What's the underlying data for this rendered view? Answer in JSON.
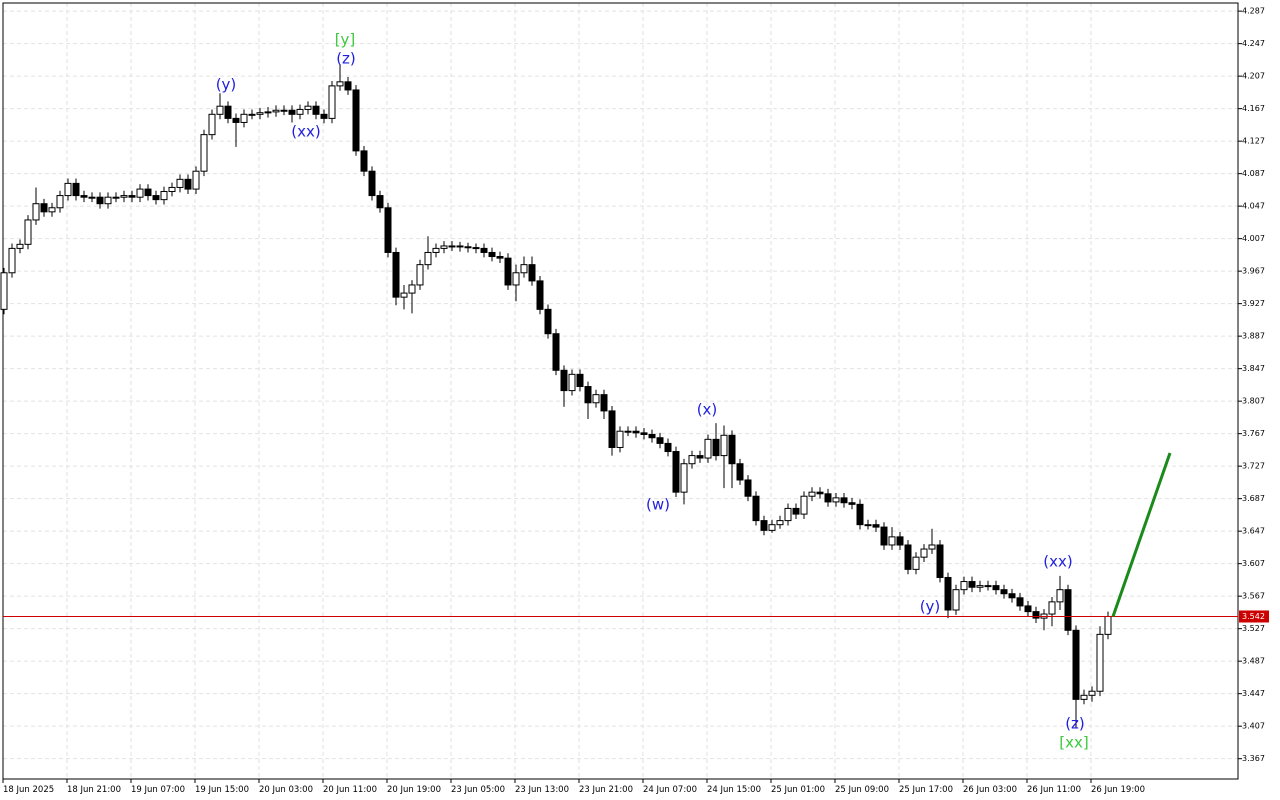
{
  "chart_data": {
    "type": "candlestick",
    "open": [
      3.92,
      3.965,
      3.995,
      4.0,
      4.03,
      4.05,
      4.04,
      4.045,
      4.06,
      4.075,
      4.06,
      4.058,
      4.058,
      4.05,
      4.058,
      4.058,
      4.06,
      4.058,
      4.068,
      4.06,
      4.055,
      4.065,
      4.07,
      4.08,
      4.068,
      4.09,
      4.135,
      4.16,
      4.17,
      4.155,
      4.15,
      4.16,
      4.16,
      4.162,
      4.163,
      4.165,
      4.165,
      4.16,
      4.166,
      4.17,
      4.16,
      4.155,
      4.195,
      4.2,
      4.19,
      4.115,
      4.09,
      4.06,
      4.045,
      3.99,
      3.935,
      3.94,
      3.95,
      3.975,
      3.99,
      3.995,
      3.998,
      3.998,
      3.997,
      3.996,
      3.995,
      3.99,
      3.985,
      3.983,
      3.95,
      3.965,
      3.975,
      3.955,
      3.92,
      3.89,
      3.845,
      3.82,
      3.84,
      3.825,
      3.805,
      3.815,
      3.795,
      3.75,
      3.77,
      3.77,
      3.768,
      3.766,
      3.762,
      3.755,
      3.745,
      3.695,
      3.73,
      3.74,
      3.737,
      3.76,
      3.74,
      3.765,
      3.73,
      3.71,
      3.69,
      3.66,
      3.648,
      3.655,
      3.66,
      3.675,
      3.668,
      3.69,
      3.695,
      3.693,
      3.683,
      3.688,
      3.682,
      3.68,
      3.655,
      3.655,
      3.652,
      3.63,
      3.64,
      3.63,
      3.6,
      3.615,
      3.625,
      3.63,
      3.59,
      3.55,
      3.575,
      3.585,
      3.578,
      3.58,
      3.58,
      3.575,
      3.57,
      3.565,
      3.555,
      3.548,
      3.54,
      3.545,
      3.56,
      3.575,
      3.525,
      3.44,
      3.445,
      3.45,
      3.52
    ],
    "high": [
      3.971,
      4.001,
      4.006,
      4.036,
      4.07,
      4.056,
      4.051,
      4.066,
      4.081,
      4.081,
      4.066,
      4.064,
      4.064,
      4.064,
      4.064,
      4.066,
      4.066,
      4.074,
      4.074,
      4.066,
      4.071,
      4.076,
      4.086,
      4.086,
      4.096,
      4.141,
      4.166,
      4.186,
      4.176,
      4.161,
      4.166,
      4.166,
      4.168,
      4.169,
      4.171,
      4.171,
      4.171,
      4.172,
      4.176,
      4.176,
      4.166,
      4.201,
      4.222,
      4.206,
      4.196,
      4.121,
      4.096,
      4.066,
      4.051,
      3.996,
      3.95,
      3.956,
      3.981,
      4.01,
      4.001,
      4.004,
      4.004,
      4.003,
      4.002,
      4.001,
      4.001,
      3.996,
      3.991,
      3.989,
      3.975,
      3.985,
      3.985,
      3.961,
      3.926,
      3.896,
      3.851,
      3.846,
      3.846,
      3.831,
      3.821,
      3.821,
      3.801,
      3.776,
      3.776,
      3.776,
      3.774,
      3.772,
      3.768,
      3.761,
      3.751,
      3.736,
      3.746,
      3.746,
      3.766,
      3.78,
      3.777,
      3.771,
      3.736,
      3.716,
      3.696,
      3.666,
      3.661,
      3.666,
      3.681,
      3.681,
      3.696,
      3.701,
      3.701,
      3.699,
      3.694,
      3.694,
      3.688,
      3.686,
      3.661,
      3.661,
      3.658,
      3.652,
      3.646,
      3.636,
      3.621,
      3.631,
      3.65,
      3.636,
      3.596,
      3.581,
      3.591,
      3.591,
      3.586,
      3.586,
      3.586,
      3.581,
      3.576,
      3.571,
      3.561,
      3.554,
      3.551,
      3.566,
      3.592,
      3.581,
      3.531,
      3.452,
      3.456,
      3.53,
      3.548
    ],
    "low": [
      3.914,
      3.959,
      3.989,
      3.994,
      4.024,
      4.034,
      4.034,
      4.039,
      4.054,
      4.054,
      4.052,
      4.052,
      4.044,
      4.044,
      4.052,
      4.052,
      4.052,
      4.052,
      4.054,
      4.049,
      4.049,
      4.059,
      4.064,
      4.062,
      4.062,
      4.084,
      4.129,
      4.154,
      4.149,
      4.12,
      4.144,
      4.154,
      4.154,
      4.156,
      4.157,
      4.159,
      4.15,
      4.154,
      4.16,
      4.154,
      4.149,
      4.149,
      4.189,
      4.184,
      4.109,
      4.084,
      4.054,
      4.039,
      3.984,
      3.925,
      3.92,
      3.915,
      3.944,
      3.969,
      3.984,
      3.989,
      3.992,
      3.991,
      3.99,
      3.989,
      3.984,
      3.979,
      3.977,
      3.944,
      3.93,
      3.959,
      3.949,
      3.914,
      3.884,
      3.839,
      3.8,
      3.814,
      3.819,
      3.785,
      3.799,
      3.785,
      3.74,
      3.744,
      3.764,
      3.762,
      3.76,
      3.756,
      3.749,
      3.739,
      3.689,
      3.68,
      3.724,
      3.731,
      3.731,
      3.734,
      3.7,
      3.7,
      3.704,
      3.684,
      3.654,
      3.642,
      3.645,
      3.65,
      3.654,
      3.662,
      3.662,
      3.684,
      3.687,
      3.677,
      3.677,
      3.676,
      3.674,
      3.649,
      3.649,
      3.646,
      3.624,
      3.624,
      3.624,
      3.594,
      3.594,
      3.609,
      3.619,
      3.584,
      3.54,
      3.544,
      3.569,
      3.572,
      3.572,
      3.574,
      3.569,
      3.564,
      3.559,
      3.549,
      3.542,
      3.534,
      3.525,
      3.53,
      3.55,
      3.519,
      3.405,
      3.434,
      3.437,
      3.444,
      3.514
    ],
    "close": [
      3.965,
      3.995,
      4.0,
      4.03,
      4.05,
      4.04,
      4.045,
      4.06,
      4.075,
      4.06,
      4.058,
      4.058,
      4.05,
      4.058,
      4.058,
      4.06,
      4.058,
      4.068,
      4.06,
      4.055,
      4.065,
      4.07,
      4.08,
      4.068,
      4.09,
      4.135,
      4.16,
      4.17,
      4.155,
      4.15,
      4.16,
      4.16,
      4.162,
      4.163,
      4.165,
      4.165,
      4.16,
      4.166,
      4.17,
      4.16,
      4.155,
      4.195,
      4.2,
      4.19,
      4.115,
      4.09,
      4.06,
      4.045,
      3.99,
      3.935,
      3.94,
      3.95,
      3.975,
      3.99,
      3.995,
      3.998,
      3.998,
      3.997,
      3.996,
      3.995,
      3.99,
      3.985,
      3.983,
      3.95,
      3.965,
      3.975,
      3.955,
      3.92,
      3.89,
      3.845,
      3.82,
      3.84,
      3.825,
      3.805,
      3.815,
      3.795,
      3.75,
      3.77,
      3.77,
      3.768,
      3.766,
      3.762,
      3.755,
      3.745,
      3.695,
      3.73,
      3.74,
      3.737,
      3.76,
      3.74,
      3.765,
      3.73,
      3.71,
      3.69,
      3.66,
      3.648,
      3.655,
      3.66,
      3.675,
      3.668,
      3.69,
      3.695,
      3.693,
      3.683,
      3.688,
      3.682,
      3.68,
      3.655,
      3.655,
      3.652,
      3.63,
      3.64,
      3.63,
      3.6,
      3.615,
      3.625,
      3.63,
      3.59,
      3.55,
      3.575,
      3.585,
      3.578,
      3.58,
      3.58,
      3.575,
      3.57,
      3.565,
      3.555,
      3.548,
      3.54,
      3.545,
      3.56,
      3.575,
      3.525,
      3.44,
      3.445,
      3.45,
      3.52,
      3.542
    ],
    "up_color": "#ffffff",
    "down_color": "#000000",
    "ylim": [
      3.342,
      4.297
    ],
    "yticks": [
      4.287,
      4.247,
      4.207,
      4.167,
      4.127,
      4.087,
      4.047,
      4.007,
      3.967,
      3.927,
      3.887,
      3.847,
      3.807,
      3.767,
      3.727,
      3.687,
      3.647,
      3.607,
      3.567,
      3.527,
      3.487,
      3.447,
      3.407,
      3.367
    ],
    "xticks": [
      {
        "value": 0,
        "label": "18 Jun 2025"
      },
      {
        "value": 8,
        "label": "18 Jun 21:00"
      },
      {
        "value": 16,
        "label": "19 Jun 07:00"
      },
      {
        "value": 24,
        "label": "19 Jun 15:00"
      },
      {
        "value": 32,
        "label": "20 Jun 03:00"
      },
      {
        "value": 40,
        "label": "20 Jun 11:00"
      },
      {
        "value": 48,
        "label": "20 Jun 19:00"
      },
      {
        "value": 56,
        "label": "23 Jun 05:00"
      },
      {
        "value": 64,
        "label": "23 Jun 13:00"
      },
      {
        "value": 72,
        "label": "23 Jun 21:00"
      },
      {
        "value": 80,
        "label": "24 Jun 07:00"
      },
      {
        "value": 88,
        "label": "24 Jun 15:00"
      },
      {
        "value": 96,
        "label": "25 Jun 01:00"
      },
      {
        "value": 104,
        "label": "25 Jun 09:00"
      },
      {
        "value": 112,
        "label": "25 Jun 17:00"
      },
      {
        "value": 120,
        "label": "26 Jun 03:00"
      },
      {
        "value": 128,
        "label": "26 Jun 11:00"
      },
      {
        "value": 136,
        "label": "26 Jun 19:00"
      }
    ],
    "grid": true,
    "current_price": 3.542,
    "current_price_color": "#cc0000",
    "forecast_color": "#1a8a1a",
    "annotations": [
      {
        "text": "[y]",
        "color": "#3cc83c"
      },
      {
        "text": "(z)",
        "color": "#2020e0"
      },
      {
        "text": "(y)",
        "color": "#2020e0"
      },
      {
        "text": "(xx)",
        "color": "#2020e0"
      },
      {
        "text": "(x)",
        "color": "#2020e0"
      },
      {
        "text": "(w)",
        "color": "#2020e0"
      },
      {
        "text": "(y)",
        "color": "#2020e0"
      },
      {
        "text": "(xx)",
        "color": "#2020e0"
      },
      {
        "text": "(z)",
        "color": "#2020e0"
      },
      {
        "text": "[xx]",
        "color": "#3cc83c"
      }
    ]
  }
}
